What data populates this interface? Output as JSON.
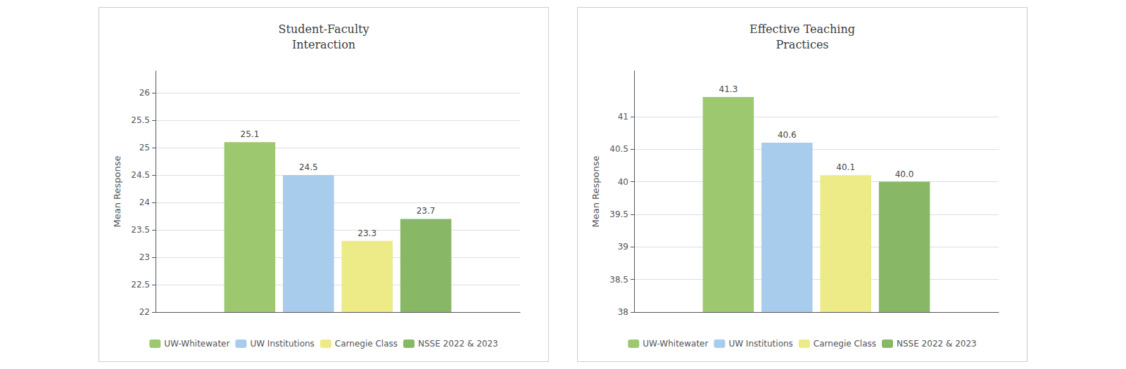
{
  "chart_data": [
    {
      "type": "bar",
      "title": "Student-Faculty\nInteraction",
      "categories": [
        null
      ],
      "series": [
        {
          "name": "UW-Whitewater",
          "color": "#9DC870",
          "values": [
            25.1
          ]
        },
        {
          "name": "UW Institutions",
          "color": "#A8CCEC",
          "values": [
            24.5
          ]
        },
        {
          "name": "Carnegie Class",
          "color": "#EDEA88",
          "values": [
            23.3
          ]
        },
        {
          "name": "NSSE 2022 & 2023",
          "color": "#88B865",
          "values": [
            23.7
          ]
        }
      ],
      "ylabel": "Mean Response",
      "ylim": [
        22,
        26.4
      ],
      "yticks": [
        22,
        22.5,
        23,
        23.5,
        24,
        24.5,
        25,
        25.5,
        26
      ],
      "grid": true,
      "legend": "bottom",
      "data_labels": true,
      "tick_labels": "y"
    },
    {
      "type": "bar",
      "title": "Effective Teaching\nPractices",
      "categories": [
        null
      ],
      "series": [
        {
          "name": "UW-Whitewater",
          "color": "#9DC870",
          "values": [
            41.3
          ]
        },
        {
          "name": "UW Institutions",
          "color": "#A8CCEC",
          "values": [
            40.6
          ]
        },
        {
          "name": "Carnegie Class",
          "color": "#EDEA88",
          "values": [
            40.1
          ]
        },
        {
          "name": "NSSE 2022 & 2023",
          "color": "#88B865",
          "values": [
            40.0
          ],
          "value_labels": [
            "40.0"
          ]
        }
      ],
      "ylabel": "Mean Response",
      "ylim": [
        38,
        41.7
      ],
      "yticks": [
        38,
        38.5,
        39,
        39.5,
        40,
        40.5,
        41
      ],
      "grid": true,
      "legend": "bottom",
      "data_labels": true,
      "tick_labels": "y"
    }
  ]
}
